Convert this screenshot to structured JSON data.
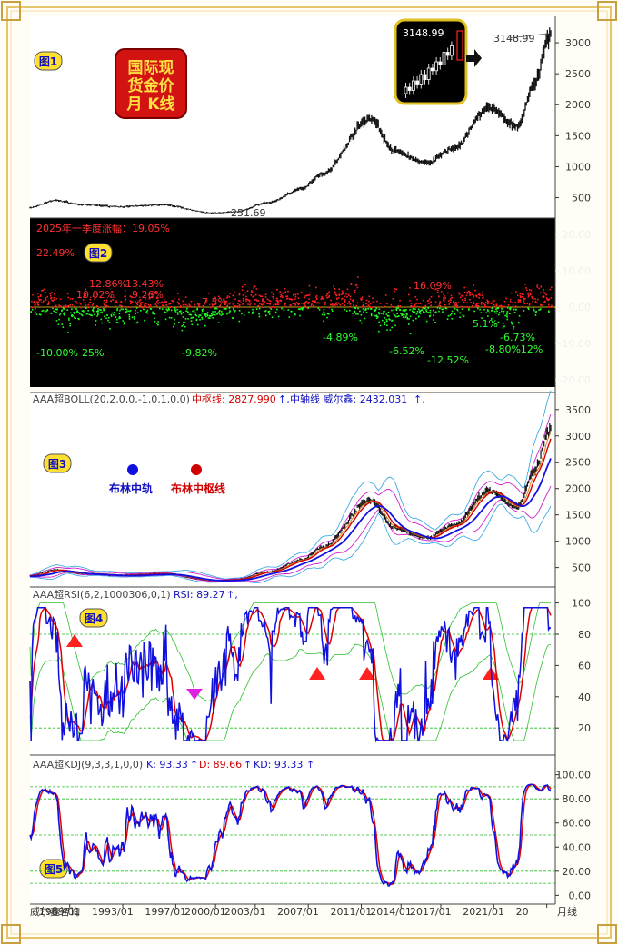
{
  "chart_data": [
    {
      "type": "line",
      "title": "国际现货金价月K线",
      "title_lines": [
        "国际现",
        "货金价",
        "月 K线"
      ],
      "panel_tag": "图1",
      "last_price_label": "3148.99",
      "low_label": "251.69",
      "inset_price_label": "3148.99",
      "x_year_range": [
        1986,
        2025.3
      ],
      "ylim": [
        200,
        3250
      ],
      "y_ticks": [
        "500",
        "1000",
        "1500",
        "2000",
        "2500",
        "3000"
      ],
      "anchors": [
        {
          "x": 1986.0,
          "y": 340
        },
        {
          "x": 1987.9,
          "y": 455
        },
        {
          "x": 1990.0,
          "y": 385
        },
        {
          "x": 1993.0,
          "y": 355
        },
        {
          "x": 1996.0,
          "y": 385
        },
        {
          "x": 1999.7,
          "y": 255
        },
        {
          "x": 2001.5,
          "y": 270
        },
        {
          "x": 2004.0,
          "y": 420
        },
        {
          "x": 2006.5,
          "y": 640
        },
        {
          "x": 2008.0,
          "y": 880
        },
        {
          "x": 2011.7,
          "y": 1780
        },
        {
          "x": 2013.5,
          "y": 1250
        },
        {
          "x": 2015.9,
          "y": 1060
        },
        {
          "x": 2018.0,
          "y": 1300
        },
        {
          "x": 2020.6,
          "y": 1950
        },
        {
          "x": 2022.8,
          "y": 1650
        },
        {
          "x": 2024.0,
          "y": 2300
        },
        {
          "x": 2025.3,
          "y": 3148.99
        }
      ]
    },
    {
      "type": "scatter",
      "panel_tag": "图2",
      "title": "2025年一季度涨幅：19.05%",
      "label_left": "22.49%",
      "ylim": [
        -22,
        22
      ],
      "y_ticks": [
        "20.00",
        "10.00",
        "0.00",
        "-10.00",
        "-20.00"
      ],
      "annotations_red": [
        "12.86%",
        "13.43%",
        "10.02%",
        "9.26%",
        "16.09%",
        "7.5%"
      ],
      "annotations_green": [
        "-10.00%",
        "25%",
        "-12.52%",
        "-9.82%",
        "-8.80%12%",
        "-4.89%",
        "-6.52%",
        "5.1%",
        "-6.73%"
      ],
      "colors": {
        "up": "#ff2020",
        "down": "#20ff20",
        "background": "#000000"
      }
    },
    {
      "type": "line",
      "panel_tag": "图3",
      "indicator_name": "AAA超BOLL(20,2,0,0,-1,0,1,0,0)",
      "mid_label": "中枢线: 2827.990",
      "axis_label": "中轴线 威尔鑫: 2432.031",
      "arrow": "↑,",
      "legend": [
        "布林中轨",
        "布林中枢线"
      ],
      "ylim": [
        200,
        3600
      ],
      "y_ticks": [
        "500",
        "1000",
        "1500",
        "2000",
        "2500",
        "3000",
        "3500"
      ]
    },
    {
      "type": "line",
      "panel_tag": "图4",
      "indicator_name": "AAA超RSI(6,2,1000306,0,1)",
      "value_label": "RSI: 89.27",
      "arrow": "↑,",
      "ylim": [
        5,
        105
      ],
      "y_ticks": [
        "100",
        "80",
        "60",
        "40",
        "20"
      ],
      "reference_levels": [
        80,
        50,
        20
      ]
    },
    {
      "type": "line",
      "panel_tag": "图5",
      "indicator_name": "AAA超KDJ(9,3,3,1,0,0)",
      "k_label": "K: 93.33",
      "d_label": "D: 89.66",
      "kd_label": "KD: 93.33",
      "arrow": "↑",
      "ylim": [
        -5,
        105
      ],
      "y_ticks": [
        "100.00",
        "80.00",
        "60.00",
        "40.00",
        "20.00",
        "0.00"
      ],
      "reference_levels": [
        90,
        80,
        50,
        20,
        10
      ]
    }
  ],
  "x_axis": {
    "source": "威尔鑫咨询",
    "labels": [
      "1989/01",
      "1993/01",
      "1997/01",
      "2000/01",
      "2003/01",
      "2007/01",
      "2011/01",
      "2014/01",
      "2017/01",
      "2021/01",
      "20"
    ],
    "suffix": "月线"
  },
  "colors": {
    "price": "#000000",
    "axis": "#333333",
    "blue": "#1010e0",
    "red": "#e00000",
    "green": "#20c020",
    "magenta": "#d020d0",
    "cyan": "#20a0e0",
    "gold": "#d4a020"
  }
}
